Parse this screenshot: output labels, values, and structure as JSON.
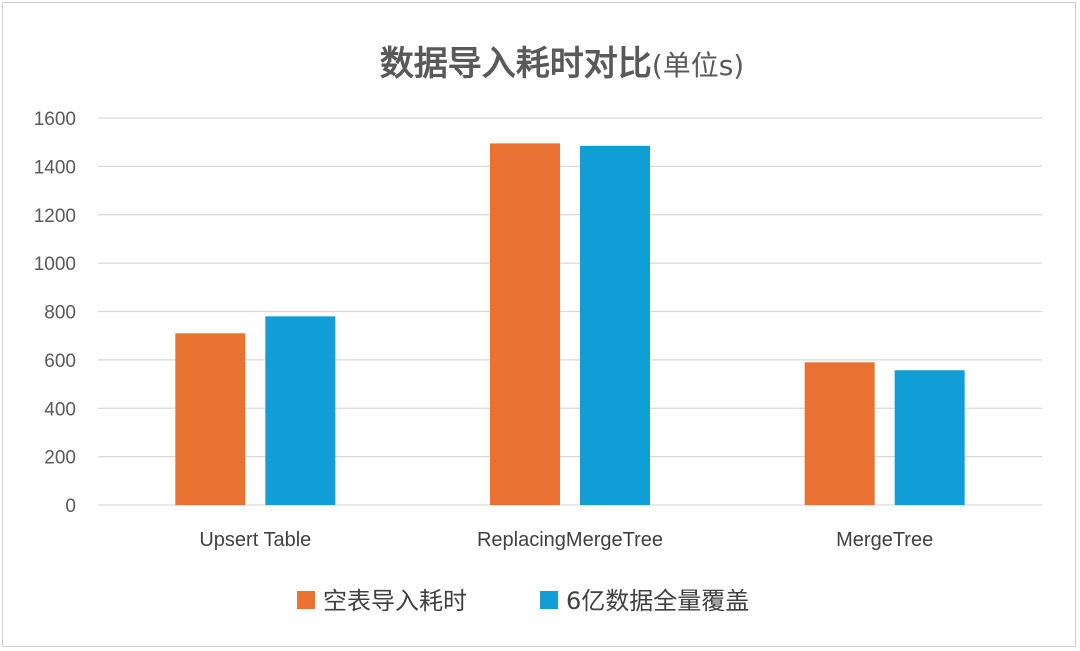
{
  "chart_data": {
    "type": "bar",
    "title": "数据导入耗时对比",
    "subtitle": "(单位s)",
    "categories": [
      "Upsert Table",
      "ReplacingMergeTree",
      "MergeTree"
    ],
    "series": [
      {
        "name": "空表导入耗时",
        "values": [
          710,
          1495,
          590
        ],
        "color": "#E97132"
      },
      {
        "name": "6亿数据全量覆盖",
        "values": [
          780,
          1485,
          557
        ],
        "color": "#0F9ED5"
      }
    ],
    "xlabel": "",
    "ylabel": "",
    "ylim": [
      0,
      1600
    ],
    "yticks": [
      "0",
      "200",
      "400",
      "600",
      "800",
      "1000",
      "1200",
      "1400",
      "1600"
    ],
    "grid": true,
    "gridColor": "#d9d9d9",
    "legend_position": "bottom"
  }
}
